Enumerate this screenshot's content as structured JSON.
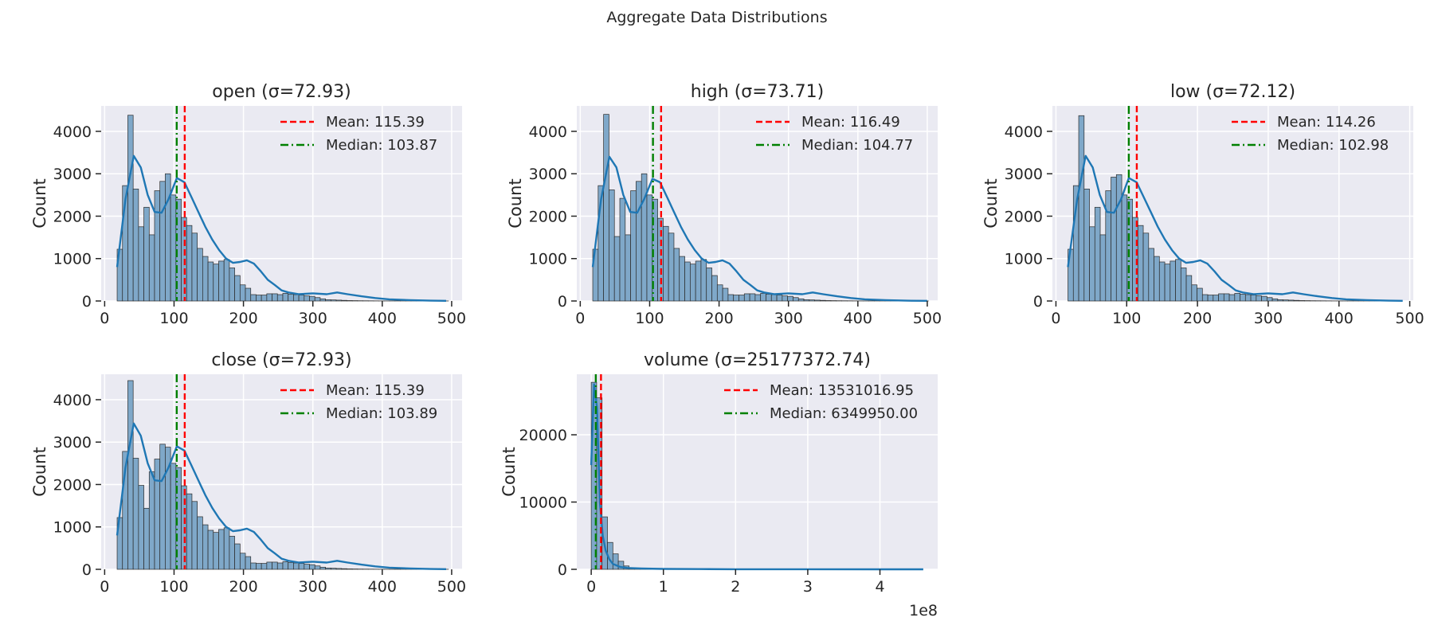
{
  "figure": {
    "title": "Aggregate Data Distributions"
  },
  "colors": {
    "bar_fill": "#7fa8c9",
    "bar_edge": "#2b2b2b",
    "kde": "#1f77b4",
    "mean": "#ff0000",
    "median": "#008000",
    "axes_bg": "#eaeaf2",
    "grid": "#ffffff"
  },
  "chart_data": [
    {
      "type": "bar",
      "title": "open (σ=72.93)",
      "ylabel": "Count",
      "xlim": [
        -5,
        515
      ],
      "ylim": [
        0,
        4600
      ],
      "xticks": [
        0,
        100,
        200,
        300,
        400,
        500
      ],
      "xtick_labels": [
        "0",
        "100",
        "200",
        "300",
        "400",
        "500"
      ],
      "yticks": [
        0,
        1000,
        2000,
        3000,
        4000
      ],
      "ytick_labels": [
        "0",
        "1000",
        "2000",
        "3000",
        "4000"
      ],
      "legend": [
        "Mean: 115.39",
        "Median: 103.87"
      ],
      "legend_position": "upper right",
      "mean": 115.39,
      "median": 103.87,
      "bin_start": 18,
      "bin_width": 7.7,
      "counts": [
        1220,
        2720,
        4380,
        2640,
        1750,
        2210,
        1560,
        2600,
        2820,
        3000,
        2500,
        2400,
        1970,
        1780,
        1600,
        1240,
        1050,
        920,
        870,
        940,
        980,
        780,
        600,
        380,
        300,
        150,
        140,
        140,
        170,
        170,
        150,
        180,
        160,
        150,
        140,
        120,
        110,
        80,
        50,
        30,
        25,
        20,
        15,
        10,
        8,
        6,
        5,
        4,
        3,
        2,
        2,
        2,
        2,
        1,
        1,
        1,
        1,
        1,
        1,
        1,
        1,
        1
      ],
      "kde_x": [
        18,
        30,
        42,
        52,
        62,
        72,
        82,
        92,
        104,
        115,
        125,
        135,
        145,
        155,
        165,
        175,
        185,
        195,
        205,
        215,
        225,
        235,
        245,
        255,
        265,
        280,
        300,
        320,
        335,
        350,
        370,
        390,
        410,
        440,
        470,
        492
      ],
      "kde_y": [
        800,
        2400,
        3420,
        3150,
        2500,
        2100,
        2080,
        2400,
        2900,
        2800,
        2450,
        2100,
        1750,
        1450,
        1200,
        1000,
        900,
        920,
        960,
        880,
        700,
        500,
        380,
        250,
        200,
        160,
        180,
        160,
        200,
        160,
        110,
        70,
        40,
        20,
        8,
        3
      ]
    },
    {
      "type": "bar",
      "title": "high (σ=73.71)",
      "ylabel": "Count",
      "xlim": [
        -5,
        515
      ],
      "ylim": [
        0,
        4600
      ],
      "xticks": [
        0,
        100,
        200,
        300,
        400,
        500
      ],
      "xtick_labels": [
        "0",
        "100",
        "200",
        "300",
        "400",
        "500"
      ],
      "yticks": [
        0,
        1000,
        2000,
        3000,
        4000
      ],
      "ytick_labels": [
        "0",
        "1000",
        "2000",
        "3000",
        "4000"
      ],
      "legend": [
        "Mean: 116.49",
        "Median: 104.77"
      ],
      "legend_position": "upper right",
      "mean": 116.49,
      "median": 104.77,
      "bin_start": 18,
      "bin_width": 7.8,
      "counts": [
        1220,
        2720,
        4400,
        2620,
        1520,
        2420,
        1560,
        2600,
        2820,
        3000,
        2500,
        2400,
        1950,
        1760,
        1600,
        1240,
        1050,
        920,
        870,
        940,
        980,
        780,
        600,
        380,
        300,
        150,
        140,
        140,
        170,
        170,
        150,
        180,
        160,
        150,
        140,
        120,
        110,
        80,
        50,
        30,
        25,
        20,
        15,
        10,
        8,
        6,
        5,
        4,
        3,
        2,
        2,
        2,
        2,
        1,
        1,
        1,
        1,
        1,
        1,
        1,
        1,
        1
      ],
      "kde_x": [
        18,
        30,
        42,
        52,
        62,
        72,
        82,
        92,
        104,
        115,
        125,
        135,
        145,
        155,
        165,
        175,
        185,
        195,
        205,
        215,
        225,
        235,
        245,
        255,
        265,
        280,
        300,
        320,
        335,
        350,
        370,
        390,
        410,
        440,
        470,
        500
      ],
      "kde_y": [
        800,
        2400,
        3400,
        3150,
        2500,
        2100,
        2080,
        2400,
        2880,
        2800,
        2450,
        2100,
        1750,
        1450,
        1200,
        1000,
        900,
        920,
        960,
        880,
        700,
        500,
        380,
        250,
        200,
        160,
        180,
        160,
        200,
        160,
        110,
        70,
        40,
        20,
        8,
        3
      ]
    },
    {
      "type": "bar",
      "title": "low (σ=72.12)",
      "ylabel": "Count",
      "xlim": [
        -5,
        505
      ],
      "ylim": [
        0,
        4600
      ],
      "xticks": [
        0,
        100,
        200,
        300,
        400,
        500
      ],
      "xtick_labels": [
        "0",
        "100",
        "200",
        "300",
        "400",
        "500"
      ],
      "yticks": [
        0,
        1000,
        2000,
        3000,
        4000
      ],
      "ytick_labels": [
        "0",
        "1000",
        "2000",
        "3000",
        "4000"
      ],
      "legend": [
        "Mean: 114.26",
        "Median: 102.98"
      ],
      "legend_position": "upper right",
      "mean": 114.26,
      "median": 102.98,
      "bin_start": 17,
      "bin_width": 7.6,
      "counts": [
        1220,
        2720,
        4370,
        2640,
        1750,
        2210,
        1560,
        2600,
        2920,
        2980,
        2500,
        2400,
        1970,
        1780,
        1600,
        1240,
        1050,
        920,
        870,
        940,
        980,
        780,
        600,
        380,
        300,
        150,
        140,
        140,
        170,
        170,
        150,
        180,
        160,
        150,
        140,
        120,
        110,
        80,
        50,
        30,
        25,
        20,
        15,
        10,
        8,
        6,
        5,
        4,
        3,
        2,
        2,
        2,
        2,
        1,
        1,
        1,
        1,
        1,
        1,
        1,
        1,
        1
      ],
      "kde_x": [
        17,
        30,
        42,
        52,
        62,
        72,
        82,
        92,
        103,
        114,
        124,
        134,
        144,
        154,
        164,
        174,
        184,
        194,
        204,
        214,
        224,
        234,
        244,
        254,
        264,
        280,
        300,
        320,
        335,
        350,
        370,
        390,
        410,
        440,
        470,
        490
      ],
      "kde_y": [
        800,
        2400,
        3420,
        3150,
        2500,
        2100,
        2080,
        2400,
        2900,
        2800,
        2450,
        2100,
        1750,
        1450,
        1200,
        1000,
        900,
        920,
        960,
        880,
        700,
        500,
        380,
        250,
        200,
        160,
        180,
        160,
        200,
        160,
        110,
        70,
        40,
        20,
        8,
        3
      ]
    },
    {
      "type": "bar",
      "title": "close (σ=72.93)",
      "ylabel": "Count",
      "xlim": [
        -5,
        515
      ],
      "ylim": [
        0,
        4600
      ],
      "xticks": [
        0,
        100,
        200,
        300,
        400,
        500
      ],
      "xtick_labels": [
        "0",
        "100",
        "200",
        "300",
        "400",
        "500"
      ],
      "yticks": [
        0,
        1000,
        2000,
        3000,
        4000
      ],
      "ytick_labels": [
        "0",
        "1000",
        "2000",
        "3000",
        "4000"
      ],
      "legend": [
        "Mean: 115.39",
        "Median: 103.89"
      ],
      "legend_position": "upper right",
      "mean": 115.39,
      "median": 103.89,
      "bin_start": 18,
      "bin_width": 7.7,
      "counts": [
        1220,
        2780,
        4450,
        2620,
        1980,
        1440,
        2300,
        2600,
        2950,
        2880,
        2500,
        2400,
        1970,
        1780,
        1600,
        1240,
        1050,
        920,
        870,
        940,
        980,
        780,
        600,
        380,
        300,
        150,
        140,
        140,
        170,
        170,
        150,
        180,
        160,
        150,
        140,
        120,
        110,
        80,
        50,
        30,
        25,
        20,
        15,
        10,
        8,
        6,
        5,
        4,
        3,
        2,
        2,
        2,
        2,
        1,
        1,
        1,
        1,
        1,
        1,
        1,
        1,
        1
      ],
      "kde_x": [
        18,
        30,
        42,
        52,
        62,
        72,
        82,
        92,
        104,
        115,
        125,
        135,
        145,
        155,
        165,
        175,
        185,
        195,
        205,
        215,
        225,
        235,
        245,
        255,
        265,
        280,
        300,
        320,
        335,
        350,
        370,
        390,
        410,
        440,
        470,
        492
      ],
      "kde_y": [
        800,
        2400,
        3440,
        3150,
        2500,
        2100,
        2080,
        2400,
        2900,
        2800,
        2450,
        2100,
        1750,
        1450,
        1200,
        1000,
        900,
        920,
        960,
        880,
        700,
        500,
        380,
        250,
        200,
        160,
        180,
        160,
        200,
        160,
        110,
        70,
        40,
        20,
        8,
        3
      ]
    },
    {
      "type": "bar",
      "title": "volume (σ=25177372.74)",
      "ylabel": "Count",
      "x_scale_label": "1e8",
      "xlim": [
        -0.2,
        4.8
      ],
      "ylim": [
        0,
        29000
      ],
      "xticks": [
        0,
        1,
        2,
        3,
        4
      ],
      "xtick_labels": [
        "0",
        "1",
        "2",
        "3",
        "4"
      ],
      "yticks": [
        0,
        10000,
        20000
      ],
      "ytick_labels": [
        "0",
        "10000",
        "20000"
      ],
      "legend": [
        "Mean: 13531016.95",
        "Median: 6349950.00"
      ],
      "legend_position": "upper right",
      "mean": 0.1353101695,
      "median": 0.0634995,
      "bin_start": 0,
      "bin_width": 0.075,
      "counts": [
        27800,
        25500,
        7800,
        4000,
        2300,
        1200,
        500,
        200,
        120,
        80,
        60,
        50,
        40,
        30,
        25,
        20,
        18,
        15,
        12,
        10,
        9,
        8,
        7,
        6,
        5,
        4,
        4,
        3,
        3,
        3,
        2,
        2,
        2,
        2,
        2,
        2,
        1,
        1,
        1,
        1,
        1,
        1,
        1,
        1,
        1,
        1,
        1,
        1,
        1,
        1,
        1,
        1,
        1,
        1,
        1,
        1,
        1,
        1,
        1,
        1,
        1
      ],
      "kde_x": [
        0,
        0.04,
        0.08,
        0.12,
        0.16,
        0.2,
        0.25,
        0.3,
        0.4,
        0.5,
        0.7,
        1.0,
        1.5,
        2.0,
        3.0,
        4.0,
        4.6
      ],
      "kde_y": [
        15500,
        27500,
        24000,
        10000,
        5000,
        2800,
        1500,
        800,
        350,
        200,
        120,
        60,
        30,
        15,
        8,
        3,
        1
      ]
    }
  ]
}
